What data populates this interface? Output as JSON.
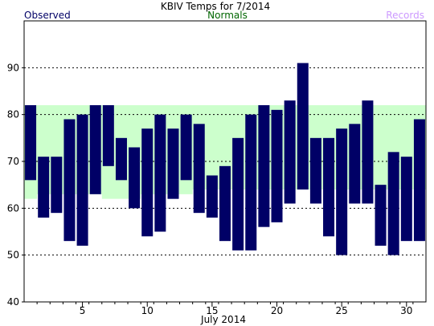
{
  "chart_data": {
    "type": "bar",
    "title": "KBIV Temps for 7/2014",
    "xlabel": "July 2014",
    "ylabel": "",
    "ylim": [
      40,
      100
    ],
    "yticks": [
      40,
      50,
      60,
      70,
      80,
      90
    ],
    "xticks": [
      5,
      10,
      15,
      20,
      25,
      30
    ],
    "grid": "horizontal dashed",
    "legend": {
      "observed": "Observed",
      "normals": "Normals",
      "records": "Records"
    },
    "colors": {
      "observed": "#000066",
      "normals_band": "#ccffcc",
      "normals_label": "#006600",
      "records_label": "#cc99ff",
      "observed_label": "#000066"
    },
    "days": [
      1,
      2,
      3,
      4,
      5,
      6,
      7,
      8,
      9,
      10,
      11,
      12,
      13,
      14,
      15,
      16,
      17,
      18,
      19,
      20,
      21,
      22,
      23,
      24,
      25,
      26,
      27,
      28,
      29,
      30,
      31
    ],
    "normals": {
      "high": [
        82,
        82,
        82,
        82,
        82,
        82,
        82,
        82,
        82,
        82,
        82,
        82,
        82,
        82,
        82,
        82,
        82,
        82,
        82,
        82,
        82,
        82,
        82,
        82,
        82,
        82,
        82,
        82,
        82,
        82,
        82
      ],
      "low": [
        62,
        63,
        63,
        63,
        63,
        63,
        62,
        62,
        62,
        63,
        63,
        63,
        63,
        64,
        64,
        64,
        64,
        64,
        64,
        64,
        64,
        64,
        64,
        64,
        64,
        64,
        64,
        64,
        64,
        64,
        64
      ]
    },
    "series": [
      {
        "name": "Observed",
        "high": [
          82,
          71,
          71,
          79,
          80,
          82,
          82,
          75,
          73,
          77,
          80,
          77,
          80,
          78,
          67,
          69,
          75,
          80,
          82,
          81,
          83,
          91,
          75,
          75,
          77,
          78,
          83,
          65,
          72,
          71,
          79
        ],
        "low": [
          66,
          58,
          59,
          53,
          52,
          63,
          69,
          66,
          60,
          54,
          55,
          62,
          66,
          59,
          58,
          53,
          51,
          51,
          56,
          57,
          61,
          64,
          61,
          54,
          50,
          61,
          61,
          52,
          50,
          53,
          53
        ]
      }
    ]
  }
}
